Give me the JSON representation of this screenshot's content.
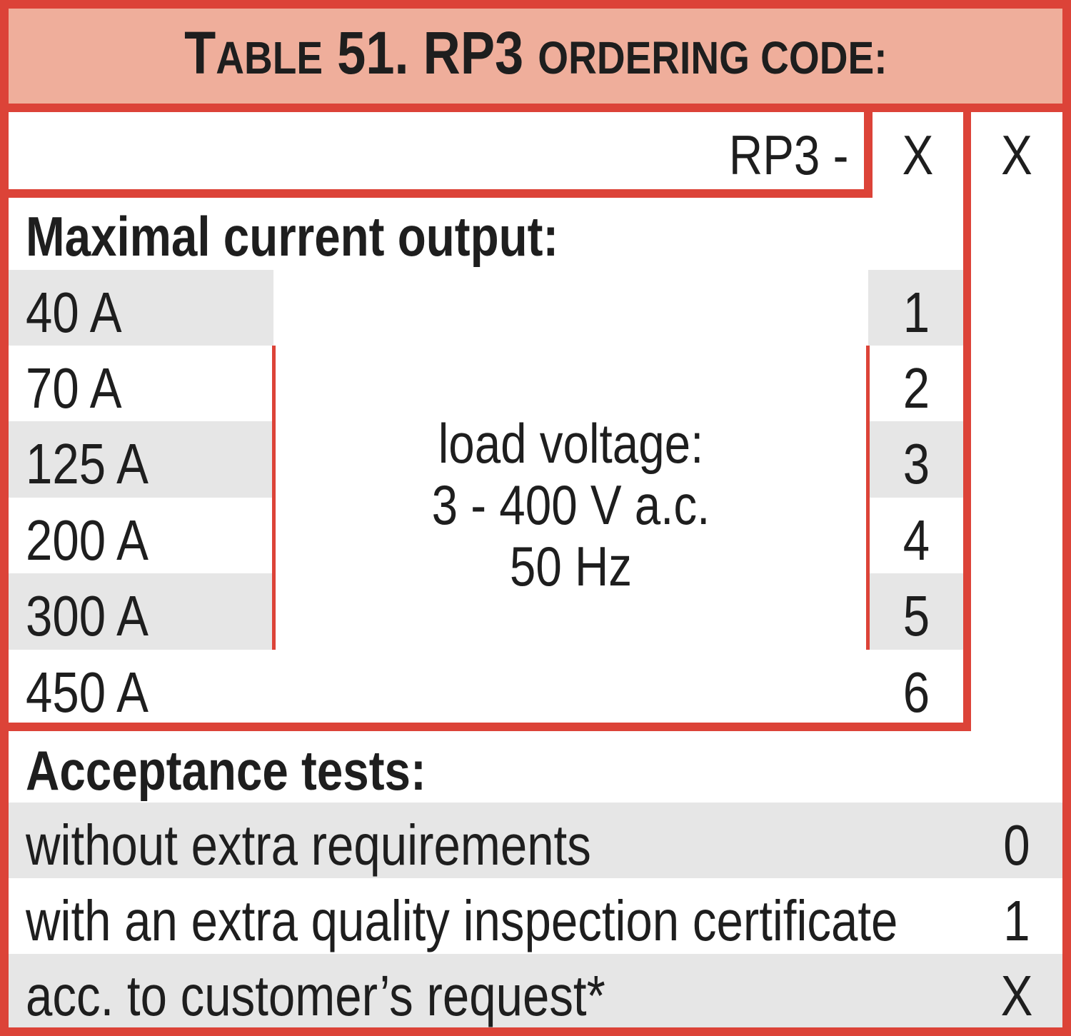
{
  "title": {
    "prefix_big": "T",
    "prefix_small": "ABLE",
    "number": "51.",
    "code": "RP3",
    "rest": "ORDERING CODE:"
  },
  "code_row": {
    "prefix": "RP3 -",
    "slot1": "X",
    "slot2": "X"
  },
  "current_section": {
    "heading": "Maximal current output:",
    "rows": [
      {
        "label": "40 A",
        "code": "1"
      },
      {
        "label": "70 A",
        "code": "2"
      },
      {
        "label": "125 A",
        "code": "3"
      },
      {
        "label": "200 A",
        "code": "4"
      },
      {
        "label": "300 A",
        "code": "5"
      },
      {
        "label": "450 A",
        "code": "6"
      }
    ],
    "note": [
      "load voltage:",
      "3 - 400 V a.c.",
      "50 Hz"
    ]
  },
  "acceptance_section": {
    "heading": "Acceptance tests:",
    "rows": [
      {
        "label": "without extra requirements",
        "code": "0"
      },
      {
        "label": "with an extra quality inspection certificate",
        "code": "1"
      },
      {
        "label": "acc. to customer’s request*",
        "code": "X"
      }
    ]
  },
  "colors": {
    "border": "#dc4338",
    "header_bg": "#efae9b",
    "stripe": "#e6e6e6"
  }
}
